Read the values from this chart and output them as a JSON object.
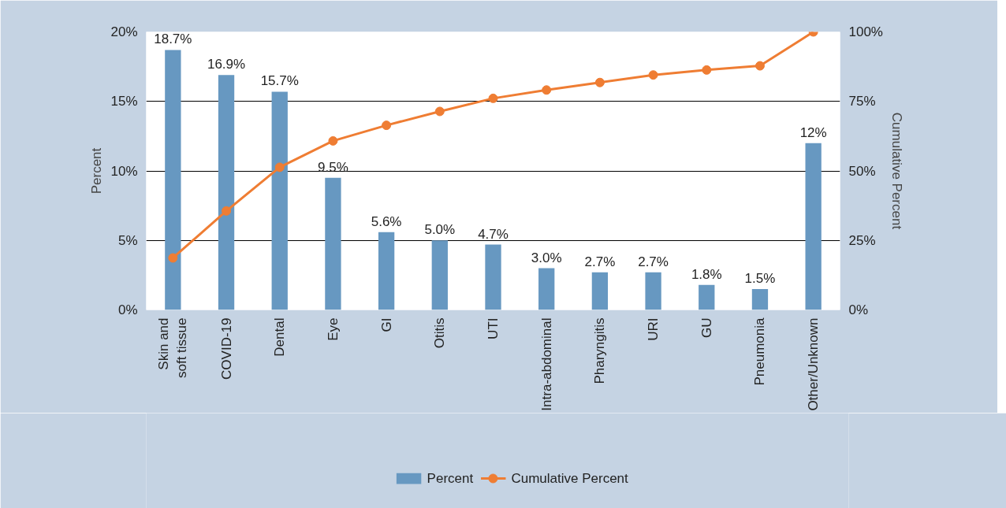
{
  "chart_data": {
    "type": "bar",
    "ylabel": "Percent",
    "y2label": "Cumulative Percent",
    "categories": [
      "Skin and\nsoft tissue",
      "COVID-19",
      "Dental",
      "Eye",
      "GI",
      "Otitis",
      "UTI",
      "Intra-abdominal",
      "Pharyngitis",
      "URI",
      "GU",
      "Pneumonia",
      "Other/Unknown"
    ],
    "series": [
      {
        "name": "Percent",
        "color": "#6798c1",
        "values": [
          18.7,
          16.9,
          15.7,
          9.5,
          5.6,
          5.0,
          4.7,
          3.0,
          2.7,
          2.7,
          1.8,
          1.5,
          12
        ],
        "value_labels": [
          "18.7%",
          "16.9%",
          "15.7%",
          "9.5%",
          "5.6%",
          "5.0%",
          "4.7%",
          "3.0%",
          "2.7%",
          "2.7%",
          "1.8%",
          "1.5%",
          "12%"
        ]
      },
      {
        "name": "Cumulative Percent",
        "type": "line",
        "axis": "y2",
        "color": "#ef7d33",
        "marker": "circle",
        "values": [
          18.7,
          35.6,
          51.3,
          60.8,
          66.4,
          71.4,
          76.1,
          79.1,
          81.8,
          84.5,
          86.3,
          87.8,
          100
        ]
      }
    ],
    "ylim": [
      0,
      20
    ],
    "yticks": [
      {
        "value": 0,
        "label": "0%"
      },
      {
        "value": 5,
        "label": "5%"
      },
      {
        "value": 10,
        "label": "10%"
      },
      {
        "value": 15,
        "label": "15%"
      },
      {
        "value": 20,
        "label": "20%"
      }
    ],
    "y2lim": [
      0,
      100
    ],
    "y2ticks": [
      {
        "value": 0,
        "label": "0%"
      },
      {
        "value": 25,
        "label": "25%"
      },
      {
        "value": 50,
        "label": "50%"
      },
      {
        "value": 75,
        "label": "75%"
      },
      {
        "value": 100,
        "label": "100%"
      }
    ],
    "grid": "y",
    "legend": "bottom"
  }
}
